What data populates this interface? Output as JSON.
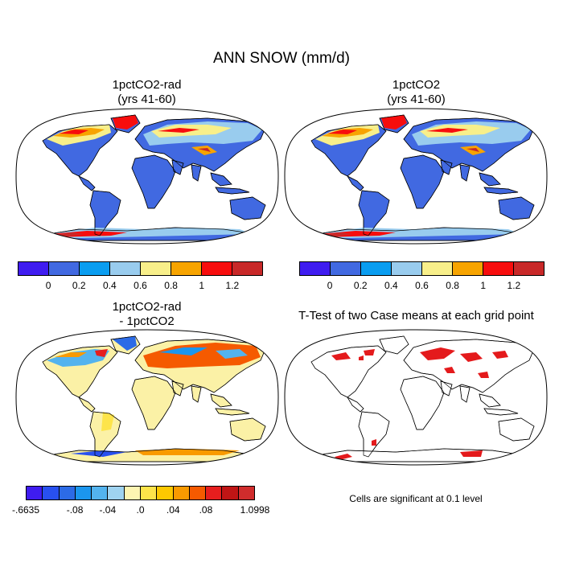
{
  "main_title": "ANN SNOW (mm/d)",
  "panels": {
    "top_left": {
      "title": "1pctCO2-rad\n(yrs 41-60)"
    },
    "top_right": {
      "title": "1pctCO2\n(yrs 41-60)"
    },
    "bottom_left": {
      "title": "1pctCO2-rad\n- 1pctCO2"
    },
    "bottom_right": {
      "title": "T-Test of two Case means at each grid point"
    }
  },
  "colorbar_main": {
    "colors": [
      "#3f1cf0",
      "#4169e1",
      "#0a9df0",
      "#99ccee",
      "#f8ef8a",
      "#f7a400",
      "#f70d0d",
      "#c82828"
    ],
    "labels": [
      "0",
      "0.2",
      "0.4",
      "0.6",
      "0.8",
      "1",
      "1.2"
    ]
  },
  "colorbar_diff": {
    "colors": [
      "#3f1cf0",
      "#2850f0",
      "#2c6be6",
      "#1b96ee",
      "#53b3ee",
      "#9fd3f0",
      "#fdf5b2",
      "#fde44a",
      "#fdc800",
      "#f99a00",
      "#f55a00",
      "#e61e1e",
      "#c01515",
      "#d02c2c"
    ],
    "labels": [
      "-.6635",
      "-.08",
      "-.04",
      ".0",
      ".04",
      ".08",
      "1.0998"
    ]
  },
  "significance_note": "Cells are significant at 0.1 level",
  "colors": {
    "ocean": "#ffffff",
    "land_base": "#4169e1",
    "diff_land": "#fbf1a6",
    "sig": "#e41a1c"
  }
}
